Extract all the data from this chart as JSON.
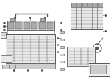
{
  "bg_color": "#ffffff",
  "fig_width": 1.6,
  "fig_height": 1.12,
  "dpi": 100,
  "line_color": "#555555",
  "fill_light": "#e8e8e8",
  "fill_mid": "#cccccc",
  "fill_dark": "#aaaaaa",
  "fill_black": "#333333"
}
